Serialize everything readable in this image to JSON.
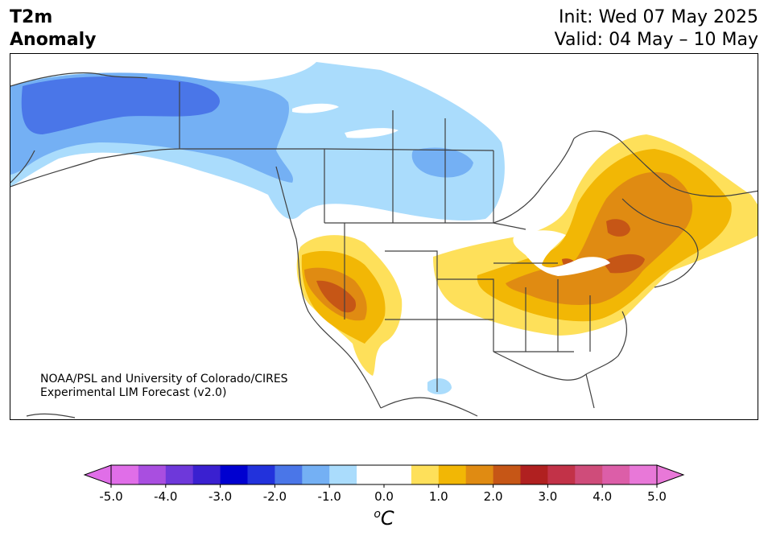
{
  "header": {
    "title_line1": "T2m",
    "title_line2": "Anomaly",
    "init": "Init: Wed 07 May 2025",
    "valid": "Valid: 04 May – 10 May"
  },
  "map": {
    "credit_line1": "NOAA/PSL and University of Colorado/CIRES",
    "credit_line2": "Experimental LIM Forecast (v2.0)",
    "colors": {
      "cold_1": "#aadcfc",
      "cold_2": "#74b0f4",
      "cold_3": "#4a76e8",
      "warm_1": "#fee05a",
      "warm_2": "#f2b705",
      "warm_3": "#e08b12",
      "warm_4": "#c65616",
      "border": "#404040"
    }
  },
  "colorbar": {
    "tick_labels": [
      "-5.0",
      "-4.0",
      "-3.0",
      "-2.0",
      "-1.0",
      "0.0",
      "1.0",
      "2.0",
      "3.0",
      "4.0",
      "5.0"
    ],
    "colors": [
      "#e06ee8",
      "#a94ee0",
      "#6e38da",
      "#3a20d0",
      "#0000d0",
      "#2232dc",
      "#4a76e8",
      "#74b0f4",
      "#aadcfc",
      "#ffffff",
      "#ffffff",
      "#fee05a",
      "#f2b705",
      "#e08b12",
      "#c65616",
      "#b02020",
      "#c23248",
      "#cf4c7a",
      "#dc5ea8",
      "#e878d8"
    ],
    "unit_base": "C",
    "unit_sup": "o"
  }
}
